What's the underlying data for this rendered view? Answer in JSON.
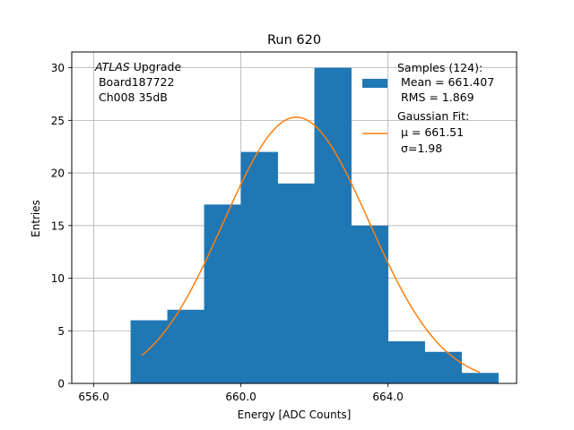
{
  "chart_data": {
    "type": "bar",
    "title": "Run 620",
    "xlabel": "Energy [ADC Counts]",
    "ylabel": "Entries",
    "xlim": [
      655.4,
      667.5
    ],
    "ylim": [
      0,
      31.5
    ],
    "xticks": [
      656.0,
      660.0,
      664.0
    ],
    "xtick_labels": [
      "656.0",
      "660.0",
      "664.0"
    ],
    "yticks": [
      0,
      5,
      10,
      15,
      20,
      25,
      30
    ],
    "ytick_labels": [
      "0",
      "5",
      "10",
      "15",
      "20",
      "25",
      "30"
    ],
    "grid": true,
    "histogram": {
      "bin_edges": [
        657,
        658,
        659,
        660,
        661,
        662,
        663,
        664,
        665,
        666,
        667
      ],
      "counts": [
        6,
        7,
        17,
        22,
        19,
        30,
        15,
        4,
        3,
        1
      ],
      "color": "#1f77b4"
    },
    "fit": {
      "type": "gaussian",
      "mu": 661.51,
      "sigma": 1.98,
      "amplitude": 25.3,
      "x_range": [
        657.3,
        666.5
      ],
      "color": "#ff7f0e"
    },
    "annotations": {
      "atlas_italic": "ATLAS",
      "lines": [
        " Upgrade",
        " Board187722",
        " Ch008 35dB"
      ]
    },
    "legend": {
      "position": "top-right",
      "samples_lines": [
        "Samples (124):",
        " Mean = 661.407",
        " RMS = 1.869"
      ],
      "fit_lines": [
        "Gaussian Fit:",
        " μ = 661.51",
        " σ=1.98"
      ]
    }
  }
}
